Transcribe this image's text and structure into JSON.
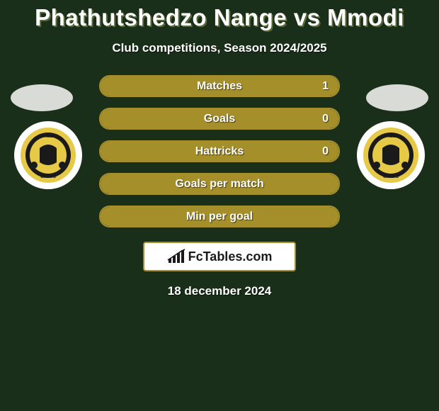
{
  "title": "Phathutshedzo Nange vs Mmodi",
  "subtitle": "Club competitions, Season 2024/2025",
  "date": "18 december 2024",
  "brand": "FcTables.com",
  "colors": {
    "bar_border": "#a58f2a",
    "bar_fill": "#a58f2a",
    "avatar": "#d9dbd6",
    "badge_outer": "#ffffff",
    "badge_inner": "#e6c946",
    "badge_core": "#1a1a1a"
  },
  "stats": [
    {
      "label": "Matches",
      "left_val": "",
      "right_val": "1",
      "left_pct": 0,
      "right_pct": 100
    },
    {
      "label": "Goals",
      "left_val": "",
      "right_val": "0",
      "left_pct": 0,
      "right_pct": 100
    },
    {
      "label": "Hattricks",
      "left_val": "",
      "right_val": "0",
      "left_pct": 0,
      "right_pct": 100
    },
    {
      "label": "Goals per match",
      "left_val": "",
      "right_val": "",
      "left_pct": 50,
      "right_pct": 50
    },
    {
      "label": "Min per goal",
      "left_val": "",
      "right_val": "",
      "left_pct": 50,
      "right_pct": 50
    }
  ]
}
